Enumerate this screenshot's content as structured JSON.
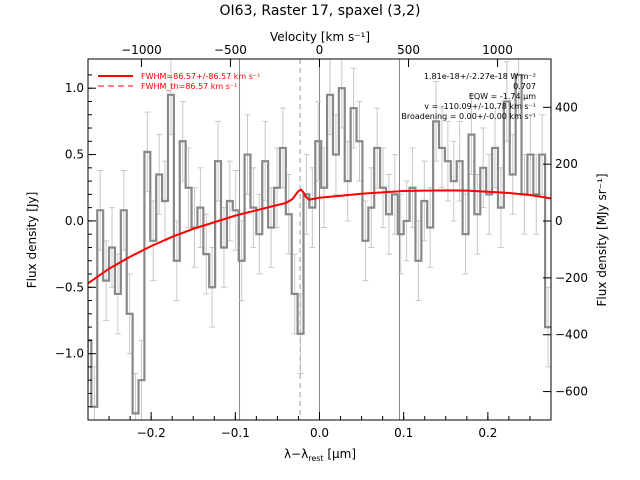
{
  "chart_data": {
    "type": "line",
    "title": "OI63, Raster 17, spaxel (3,2)",
    "xlabel": "λ−λrest [μm]",
    "xlabel_main": "λ−λ",
    "xlabel_sub": "rest",
    "xlabel_unit": " [μm]",
    "ylabel": "Flux density [Jy]",
    "y2label": "Flux density [MJy sr⁻¹]",
    "x2label": "Velocity [km s⁻¹]",
    "xlim": [
      -0.275,
      0.275
    ],
    "ylim": [
      -1.5,
      1.22
    ],
    "y2lim": [
      -700,
      570
    ],
    "x2lim": [
      -1300,
      1300
    ],
    "xticks": [
      -0.2,
      -0.1,
      0.0,
      0.1,
      0.2
    ],
    "xticklabels": [
      "−0.2",
      "−0.1",
      "0.0",
      "0.1",
      "0.2"
    ],
    "yticks": [
      -1.0,
      -0.5,
      0.0,
      0.5,
      1.0
    ],
    "yticklabels": [
      "−1.0",
      "−0.5",
      "0.0",
      "0.5",
      "1.0"
    ],
    "y2ticks": [
      -600,
      -400,
      -200,
      0,
      200,
      400
    ],
    "y2ticklabels": [
      "−600",
      "−400",
      "−200",
      "0",
      "200",
      "400"
    ],
    "x2ticks": [
      -1000,
      -500,
      0,
      500,
      1000
    ],
    "x2ticklabels": [
      "−1000",
      "−500",
      "0",
      "500",
      "1000"
    ],
    "vlines_solid": [
      -0.095,
      0.0,
      0.095
    ],
    "vline_dashed": -0.023,
    "legend": {
      "position": "top-left",
      "entries": [
        {
          "label": "FWHM=86.57+/-86.57 km s⁻¹",
          "style": "solid",
          "color": "#ff0000"
        },
        {
          "label": "FWHM_th=86.57 km s⁻¹",
          "style": "dashed",
          "color": "#ff0000"
        }
      ]
    },
    "annotations": [
      "1.81e-18+/-2.27e-18 W m⁻²",
      "0.707",
      "EQW = -1.74 μm",
      "v = -110.09+/-10.78 km s⁻¹",
      "Broadening = 0.00+/-0.00 km s⁻¹"
    ],
    "series": [
      {
        "color": "#888888",
        "style": "step",
        "x": [
          -0.2745,
          -0.2675,
          -0.2605,
          -0.2535,
          -0.2465,
          -0.2395,
          -0.2325,
          -0.2255,
          -0.2185,
          -0.2115,
          -0.2045,
          -0.1975,
          -0.1905,
          -0.1835,
          -0.1765,
          -0.1695,
          -0.1625,
          -0.1555,
          -0.1485,
          -0.1415,
          -0.1345,
          -0.1275,
          -0.1205,
          -0.1135,
          -0.1065,
          -0.0995,
          -0.0925,
          -0.0855,
          -0.0785,
          -0.0715,
          -0.0645,
          -0.0575,
          -0.0505,
          -0.0435,
          -0.0365,
          -0.0295,
          -0.0225,
          -0.0155,
          -0.0085,
          -0.0015,
          0.0055,
          0.0125,
          0.0195,
          0.0265,
          0.0335,
          0.0405,
          0.0475,
          0.0545,
          0.0615,
          0.0685,
          0.0755,
          0.0825,
          0.0895,
          0.0965,
          0.1035,
          0.1105,
          0.1175,
          0.1245,
          0.1315,
          0.1385,
          0.1455,
          0.1525,
          0.1595,
          0.1665,
          0.1735,
          0.1805,
          0.1875,
          0.1945,
          0.2015,
          0.2085,
          0.2155,
          0.2225,
          0.2295,
          0.2365,
          0.2435,
          0.2505,
          0.2575,
          0.2645,
          0.2715
        ],
        "y": [
          -0.9,
          -1.4,
          0.08,
          -0.45,
          -0.2,
          -0.55,
          0.08,
          -0.7,
          -1.45,
          -1.2,
          0.52,
          -0.15,
          0.35,
          0.15,
          0.95,
          -0.3,
          0.6,
          0.25,
          -0.05,
          0.1,
          -0.25,
          -0.5,
          0.45,
          -0.2,
          0.15,
          0.08,
          -0.3,
          0.5,
          0.1,
          -0.1,
          0.45,
          -0.05,
          0.25,
          0.55,
          0.05,
          -0.55,
          -0.85,
          0.2,
          0.1,
          0.6,
          0.25,
          0.95,
          0.5,
          1.0,
          0.3,
          0.85,
          0.6,
          -0.15,
          0.1,
          0.55,
          0.25,
          0.05,
          0.2,
          -0.1,
          0.0,
          0.25,
          -0.3,
          0.15,
          -0.05,
          0.75,
          0.55,
          0.45,
          0.3,
          0.45,
          -0.1,
          0.65,
          0.05,
          0.4,
          0.2,
          0.55,
          0.1,
          0.9,
          0.35,
          1.1,
          0.2,
          0.5,
          0.2,
          0.5,
          -0.8
        ],
        "yerr": [
          0.3,
          0.3,
          0.3,
          0.3,
          0.3,
          0.3,
          0.3,
          0.3,
          0.3,
          0.3,
          0.3,
          0.3,
          0.3,
          0.3,
          0.3,
          0.3,
          0.3,
          0.3,
          0.3,
          0.3,
          0.3,
          0.3,
          0.3,
          0.3,
          0.3,
          0.3,
          0.3,
          0.3,
          0.3,
          0.3,
          0.3,
          0.3,
          0.3,
          0.3,
          0.3,
          0.3,
          0.3,
          0.3,
          0.3,
          0.3,
          0.3,
          0.3,
          0.3,
          0.3,
          0.3,
          0.3,
          0.3,
          0.3,
          0.3,
          0.3,
          0.3,
          0.3,
          0.3,
          0.3,
          0.3,
          0.3,
          0.3,
          0.3,
          0.3,
          0.3,
          0.3,
          0.3,
          0.3,
          0.3,
          0.3,
          0.3,
          0.3,
          0.3,
          0.3,
          0.3,
          0.3,
          0.3,
          0.3,
          0.3,
          0.3,
          0.3,
          0.3,
          0.3,
          0.3
        ]
      },
      {
        "color": "#ff0000",
        "style": "line",
        "x": [
          -0.275,
          -0.25,
          -0.225,
          -0.2,
          -0.175,
          -0.15,
          -0.125,
          -0.1,
          -0.075,
          -0.05,
          -0.04,
          -0.032,
          -0.028,
          -0.025,
          -0.022,
          -0.019,
          -0.016,
          -0.012,
          -0.008,
          0.0,
          0.025,
          0.05,
          0.075,
          0.1,
          0.125,
          0.15,
          0.175,
          0.2,
          0.225,
          0.25,
          0.275
        ],
        "y": [
          -0.47,
          -0.36,
          -0.27,
          -0.19,
          -0.12,
          -0.06,
          -0.01,
          0.04,
          0.08,
          0.12,
          0.135,
          0.165,
          0.2,
          0.225,
          0.235,
          0.215,
          0.18,
          0.16,
          0.165,
          0.175,
          0.19,
          0.205,
          0.215,
          0.225,
          0.228,
          0.23,
          0.228,
          0.22,
          0.21,
          0.195,
          0.17
        ]
      }
    ]
  }
}
